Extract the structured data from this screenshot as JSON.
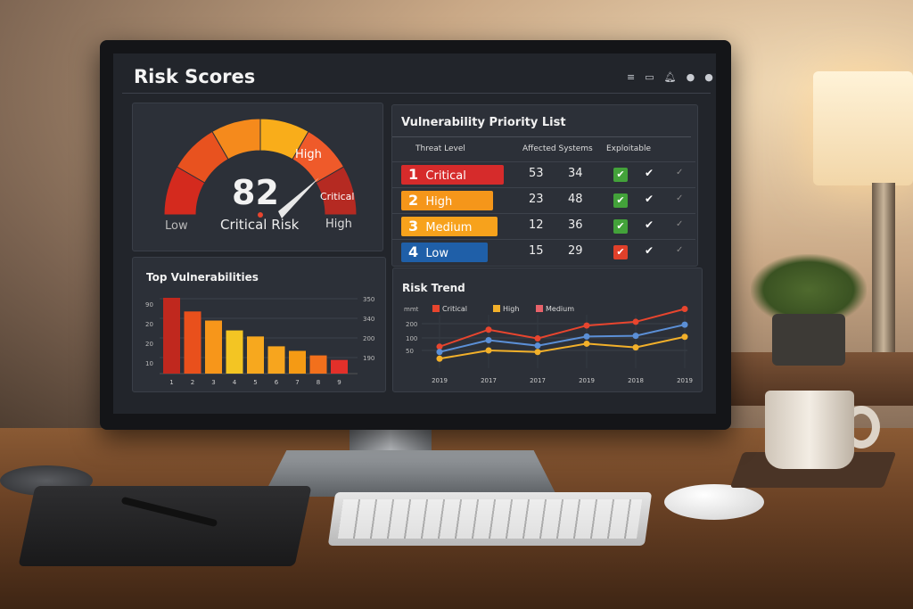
{
  "header": {
    "title": "Risk Scores",
    "icons": [
      "menu-icon",
      "display-icon",
      "bell-icon",
      "dot-icon",
      "dot-icon"
    ]
  },
  "gauge": {
    "score": "82",
    "caption": "Critical Risk",
    "value_percent": 82,
    "labels": {
      "low": "Low",
      "high_arc": "High",
      "critical_arc": "Critical",
      "high_end": "High"
    },
    "colors": [
      "#d42a1e",
      "#e8521f",
      "#f58a1c",
      "#f9ad1a",
      "#ef5a2a",
      "#b52a22"
    ]
  },
  "priority": {
    "title": "Vulnerability Priority List",
    "columns": [
      "Threat Level",
      "Affected Systems",
      "Exploitable"
    ],
    "rows": [
      {
        "rank": "1",
        "level": "Critical",
        "color": "#d62b2b",
        "a": "53",
        "b": "34",
        "check": "#43a23a"
      },
      {
        "rank": "2",
        "level": "High",
        "color": "#f5961a",
        "a": "23",
        "b": "48",
        "check": "#43a23a"
      },
      {
        "rank": "3",
        "level": "Medium",
        "color": "#f7a21c",
        "a": "12",
        "b": "36",
        "check": "#43a23a"
      },
      {
        "rank": "4",
        "level": "Low",
        "color": "#1f5fa8",
        "a": "15",
        "b": "29",
        "check": "#e0402a"
      }
    ]
  },
  "top_vulns": {
    "title": "Top Vulnerabilities"
  },
  "risk_trend": {
    "title": "Risk Trend"
  },
  "chart_data": [
    {
      "type": "bar",
      "title": "Top Vulnerabilities",
      "categories": [
        "1",
        "2",
        "3",
        "4",
        "5",
        "6",
        "7",
        "8",
        "9"
      ],
      "values": [
        100,
        82,
        70,
        57,
        49,
        36,
        30,
        24,
        18
      ],
      "left_ticks": [
        "90",
        "20",
        "20",
        "10"
      ],
      "right_ticks": [
        "350",
        "340",
        "200",
        "190"
      ],
      "colors": [
        "#c0281e",
        "#e9501c",
        "#f7961a",
        "#f3c523",
        "#f7a81e",
        "#f7a51e",
        "#f59a14",
        "#f2701c",
        "#e3302a"
      ],
      "grid": true
    },
    {
      "type": "line",
      "title": "Risk Trend",
      "x": [
        "2019",
        "2017",
        "2017",
        "2019",
        "2018",
        "2019"
      ],
      "y_ticks": [
        "200",
        "100",
        "50"
      ],
      "y_unit_label": "mmt",
      "legend": [
        {
          "name": "Critical",
          "color": "#e8452e"
        },
        {
          "name": "High",
          "color": "#f2b02a"
        },
        {
          "name": "Medium",
          "color": "#e8626a"
        }
      ],
      "series": [
        {
          "name": "Critical",
          "color": "#e8452e",
          "values": [
            65,
            158,
            98,
            187,
            213,
            303
          ]
        },
        {
          "color": "#5b8fd6",
          "values": [
            46,
            91,
            69,
            110,
            115,
            193
          ]
        },
        {
          "name": "High",
          "color": "#f2b02a",
          "values": [
            29,
            50,
            46,
            77,
            62,
            108
          ]
        }
      ],
      "grid": true,
      "legend_position": "top"
    }
  ]
}
